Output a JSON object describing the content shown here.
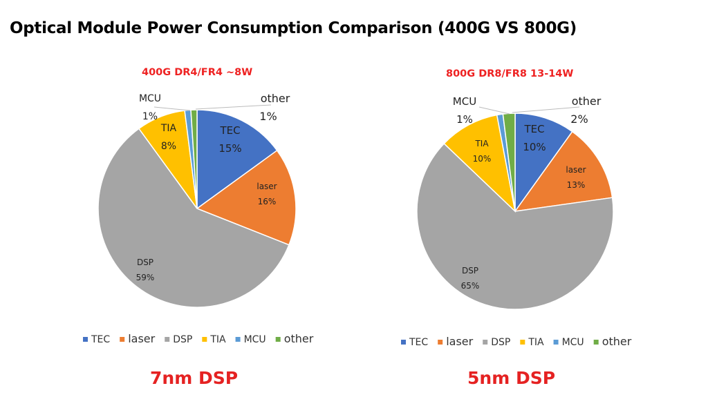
{
  "title": "Optical Module Power Consumption Comparison (400G VS 800G)",
  "colors": {
    "TEC": "#4472C4",
    "laser": "#ED7D31",
    "DSP": "#A5A5A5",
    "TIA": "#FFC000",
    "MCU": "#5B9BD5",
    "other": "#70AD47"
  },
  "chart_data": [
    {
      "type": "pie",
      "title": "400G DR4/FR4 ~8W",
      "footer": "7nm DSP",
      "categories": [
        "TEC",
        "laser",
        "DSP",
        "TIA",
        "MCU",
        "other"
      ],
      "values": [
        15,
        16,
        59,
        8,
        1,
        1
      ],
      "labels": [
        "15%",
        "16%",
        "59%",
        "8%",
        "1%",
        "1%"
      ],
      "legend": "bottom"
    },
    {
      "type": "pie",
      "title": "800G DR8/FR8 13-14W",
      "footer": "5nm DSP",
      "categories": [
        "TEC",
        "laser",
        "DSP",
        "TIA",
        "MCU",
        "other"
      ],
      "values": [
        10,
        13,
        65,
        10,
        1,
        2
      ],
      "labels": [
        "10%",
        "13%",
        "65%",
        "10%",
        "1%",
        "2%"
      ],
      "legend": "bottom"
    }
  ]
}
